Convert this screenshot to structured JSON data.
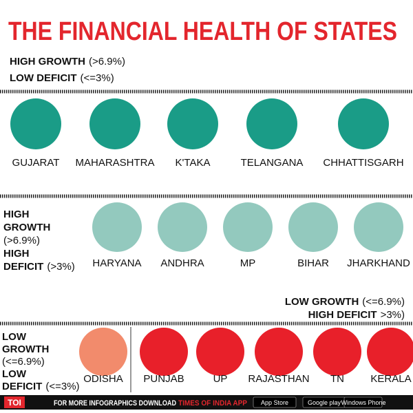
{
  "title": "THE FINANCIAL HEALTH OF STATES",
  "groups": [
    {
      "label": [
        {
          "bold": "HIGH GROWTH",
          "normal": "(>6.9%)"
        },
        {
          "bold": "LOW DEFICIT",
          "normal": "(<=3%)"
        }
      ],
      "states": [
        "GUJARAT",
        "MAHARASHTRA",
        "K'TAKA",
        "TELANGANA",
        "CHHATTISGARH"
      ]
    },
    {
      "label": [
        {
          "bold": "HIGH"
        },
        {
          "bold": "GROWTH"
        },
        {
          "normal": "(>6.9%)"
        },
        {
          "bold": "HIGH"
        },
        {
          "bold": "DEFICIT",
          "normal": "(>3%)"
        }
      ],
      "states": [
        "HARYANA",
        "ANDHRA",
        "MP",
        "BIHAR",
        "JHARKHAND"
      ]
    },
    {
      "label": [
        {
          "bold": "LOW GROWTH",
          "normal": "(<=6.9%)"
        },
        {
          "bold": "HIGH DEFICIT",
          "normal": ">3%)"
        }
      ],
      "states": [
        "PUNJAB",
        "UP",
        "RAJASTHAN",
        "TN",
        "KERALA"
      ]
    },
    {
      "label": [
        {
          "bold": "LOW"
        },
        {
          "bold": "GROWTH"
        },
        {
          "normal": "(<=6.9%)"
        },
        {
          "bold": "LOW"
        },
        {
          "bold": "DEFICIT",
          "normal": "(<=3%)"
        }
      ],
      "states": [
        "ODISHA"
      ]
    }
  ],
  "footer": {
    "logo": "TOI",
    "text": "FOR MORE INFOGRAPHICS DOWNLOAD",
    "app": "TIMES OF INDIA APP",
    "badges": [
      "App Store",
      "Google play",
      "Windows Phone"
    ]
  }
}
